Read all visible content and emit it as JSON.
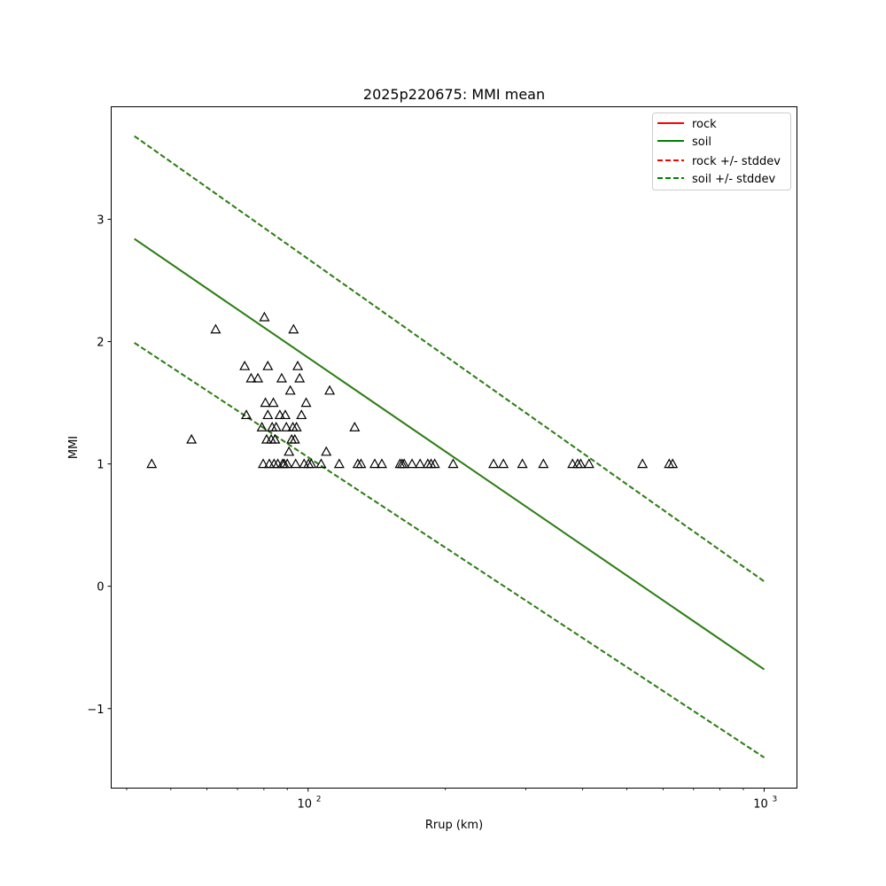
{
  "chart_data": {
    "type": "line",
    "title": "2025p220675: MMI mean",
    "xlabel": "Rrup (km)",
    "ylabel": "MMI",
    "xscale": "log",
    "xlim": [
      37,
      1180
    ],
    "ylim": [
      -1.65,
      3.92
    ],
    "xticks": [
      {
        "value": 100,
        "base": "10",
        "exp": "2"
      },
      {
        "value": 1000,
        "base": "10",
        "exp": "3"
      }
    ],
    "yticks": [
      {
        "value": -1,
        "label": "−1"
      },
      {
        "value": 0,
        "label": "0"
      },
      {
        "value": 1,
        "label": "1"
      },
      {
        "value": 2,
        "label": "2"
      },
      {
        "value": 3,
        "label": "3"
      }
    ],
    "legend_position": "top-right",
    "grid": false,
    "series": [
      {
        "name": "rock",
        "style": "solid",
        "color": "#ff0000",
        "x": [
          41.6,
          1000
        ],
        "y": [
          2.84,
          -0.68
        ]
      },
      {
        "name": "soil",
        "style": "solid",
        "color": "#008000",
        "x": [
          41.6,
          1000
        ],
        "y": [
          2.84,
          -0.68
        ]
      },
      {
        "name": "rock +/- stddev",
        "style": "dashed",
        "color": "#ff0000",
        "x": [
          41.6,
          1000
        ],
        "y": [
          3.68,
          0.04
        ]
      },
      {
        "name": "rock +/- stddev",
        "style": "dashed",
        "color": "#ff0000",
        "x": [
          41.6,
          1000
        ],
        "y": [
          1.99,
          -1.4
        ]
      },
      {
        "name": "soil +/- stddev",
        "style": "dashed",
        "color": "#008000",
        "x": [
          41.6,
          1000
        ],
        "y": [
          3.68,
          0.04
        ]
      },
      {
        "name": "soil +/- stddev",
        "style": "dashed",
        "color": "#008000",
        "x": [
          41.6,
          1000
        ],
        "y": [
          1.99,
          -1.4
        ]
      }
    ],
    "legend": [
      {
        "label": "rock",
        "color": "#ff0000",
        "style": "solid"
      },
      {
        "label": "soil",
        "color": "#008000",
        "style": "solid"
      },
      {
        "label": "rock +/- stddev",
        "color": "#ff0000",
        "style": "dashed"
      },
      {
        "label": "soil +/- stddev",
        "color": "#008000",
        "style": "dashed"
      }
    ],
    "observations": {
      "marker": "triangle",
      "color": "#000000",
      "points": [
        [
          45.4,
          1.0
        ],
        [
          55.5,
          1.2
        ],
        [
          62.7,
          2.1
        ],
        [
          72.6,
          1.8
        ],
        [
          73.2,
          1.4
        ],
        [
          75.0,
          1.7
        ],
        [
          77.6,
          1.7
        ],
        [
          79.2,
          1.3
        ],
        [
          79.7,
          1.0
        ],
        [
          80.2,
          2.2
        ],
        [
          80.6,
          1.5
        ],
        [
          81.1,
          1.2
        ],
        [
          81.6,
          1.8
        ],
        [
          81.6,
          1.4
        ],
        [
          82.2,
          1.0
        ],
        [
          83.0,
          1.2
        ],
        [
          83.4,
          1.3
        ],
        [
          83.9,
          1.5
        ],
        [
          84.2,
          1.0
        ],
        [
          84.6,
          1.2
        ],
        [
          85.1,
          1.3
        ],
        [
          85.8,
          1.0
        ],
        [
          86.7,
          1.4
        ],
        [
          87.5,
          1.7
        ],
        [
          87.9,
          1.0
        ],
        [
          88.6,
          1.0
        ],
        [
          89.1,
          1.4
        ],
        [
          89.6,
          1.3
        ],
        [
          90.0,
          1.0
        ],
        [
          90.8,
          1.1
        ],
        [
          91.4,
          1.6
        ],
        [
          92.0,
          1.2
        ],
        [
          92.6,
          1.3
        ],
        [
          92.9,
          2.1
        ],
        [
          93.5,
          1.2
        ],
        [
          93.9,
          1.0
        ],
        [
          94.3,
          1.3
        ],
        [
          94.9,
          1.8
        ],
        [
          95.8,
          1.7
        ],
        [
          96.7,
          1.4
        ],
        [
          98.0,
          1.0
        ],
        [
          99.0,
          1.5
        ],
        [
          100.2,
          1.0
        ],
        [
          101.6,
          1.0
        ],
        [
          106.8,
          1.0
        ],
        [
          109.6,
          1.1
        ],
        [
          111.5,
          1.6
        ],
        [
          117.0,
          1.0
        ],
        [
          126.5,
          1.3
        ],
        [
          128.5,
          1.0
        ],
        [
          130.6,
          1.0
        ],
        [
          140.0,
          1.0
        ],
        [
          145.1,
          1.0
        ],
        [
          159.0,
          1.0
        ],
        [
          160.7,
          1.0
        ],
        [
          162.4,
          1.0
        ],
        [
          169.0,
          1.0
        ],
        [
          176.0,
          1.0
        ],
        [
          183.0,
          1.0
        ],
        [
          186.0,
          1.0
        ],
        [
          189.5,
          1.0
        ],
        [
          208.0,
          1.0
        ],
        [
          255.0,
          1.0
        ],
        [
          268.0,
          1.0
        ],
        [
          295.0,
          1.0
        ],
        [
          328.0,
          1.0
        ],
        [
          380.0,
          1.0
        ],
        [
          390.0,
          1.0
        ],
        [
          396.0,
          1.0
        ],
        [
          413.0,
          1.0
        ],
        [
          541.0,
          1.0
        ],
        [
          619.0,
          1.0
        ],
        [
          630.0,
          1.0
        ]
      ]
    }
  }
}
